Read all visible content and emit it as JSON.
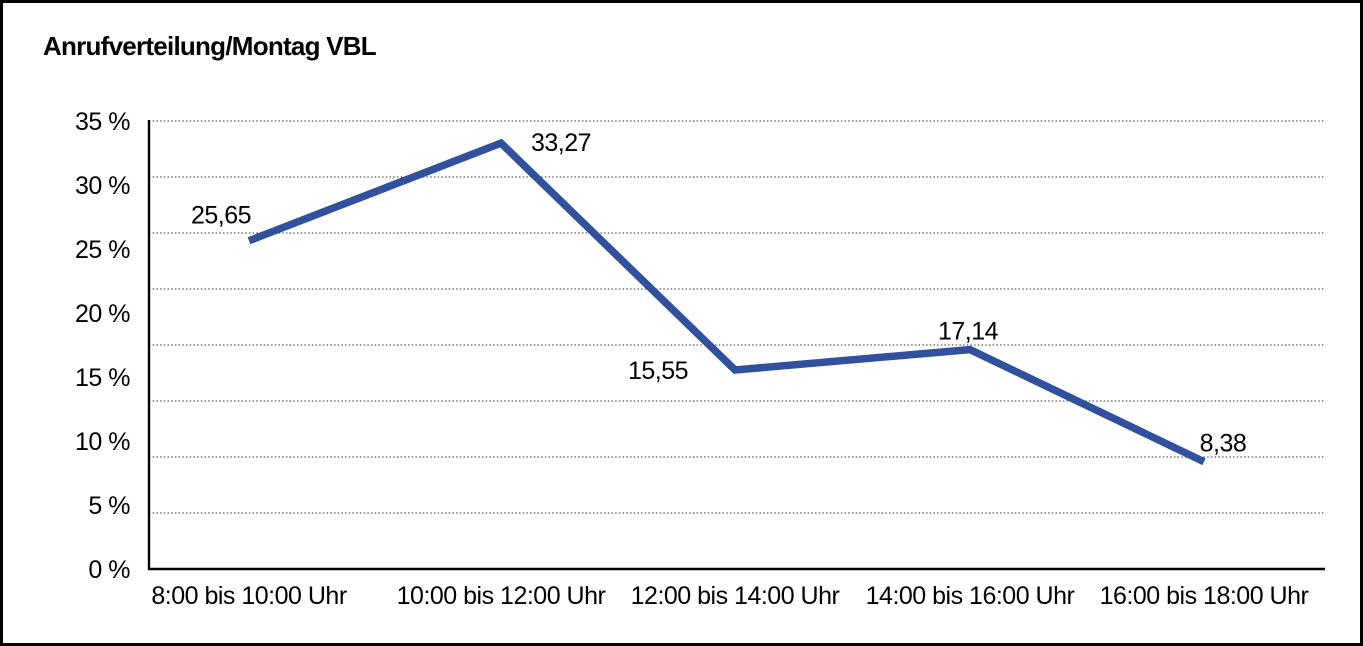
{
  "title": "Anrufverteilung/Montag VBL",
  "chart_data": {
    "type": "line",
    "title": "Anrufverteilung/Montag VBL",
    "categories": [
      "8:00 bis 10:00 Uhr",
      "10:00 bis 12:00 Uhr",
      "12:00 bis 14:00 Uhr",
      "14:00 bis 16:00 Uhr",
      "16:00 bis 18:00 Uhr"
    ],
    "values": [
      25.65,
      33.27,
      15.55,
      17.14,
      8.38
    ],
    "data_labels": [
      "25,65",
      "33,27",
      "15,55",
      "17,14",
      "8,38"
    ],
    "y_tick_labels": [
      "35 %",
      "30 %",
      "25 %",
      "20 %",
      "15 %",
      "10 %",
      "5 %",
      "0 %"
    ],
    "y_tick_values": [
      35,
      30,
      25,
      20,
      15,
      10,
      5,
      0
    ],
    "ylim": [
      0,
      35
    ],
    "xlabel": "",
    "ylabel": "",
    "legend": "none",
    "grid": "horizontal-dotted",
    "gridline_count": 9,
    "line_color": "#31519E",
    "axis_color": "#000000",
    "gridline_color": "#5a5a5a",
    "text_color": "#000000"
  }
}
